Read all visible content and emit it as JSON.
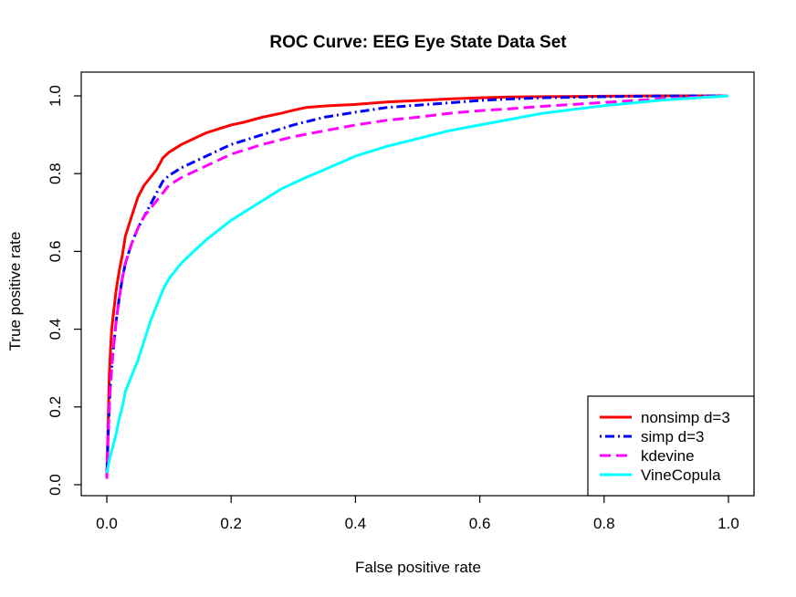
{
  "chart_data": {
    "type": "line",
    "title": "ROC Curve: EEG Eye State Data Set",
    "xlabel": "False positive rate",
    "ylabel": "True positive rate",
    "xlim": [
      0.0,
      1.0
    ],
    "ylim": [
      0.0,
      1.0
    ],
    "x_ticks": [
      "0.0",
      "0.2",
      "0.4",
      "0.6",
      "0.8",
      "1.0"
    ],
    "y_ticks": [
      "0.0",
      "0.2",
      "0.4",
      "0.6",
      "0.8",
      "1.0"
    ],
    "legend_position": "bottom-right",
    "series": [
      {
        "name": "nonsimp d=3",
        "color": "#ff0000",
        "dash": "solid",
        "x": [
          0.0,
          0.002,
          0.004,
          0.006,
          0.008,
          0.01,
          0.015,
          0.02,
          0.025,
          0.03,
          0.04,
          0.05,
          0.06,
          0.07,
          0.08,
          0.09,
          0.1,
          0.12,
          0.14,
          0.16,
          0.18,
          0.2,
          0.22,
          0.25,
          0.28,
          0.3,
          0.32,
          0.35,
          0.4,
          0.45,
          0.5,
          0.55,
          0.6,
          0.65,
          0.7,
          0.8,
          0.9,
          1.0
        ],
        "y": [
          0.02,
          0.15,
          0.28,
          0.35,
          0.4,
          0.43,
          0.5,
          0.55,
          0.59,
          0.64,
          0.69,
          0.74,
          0.77,
          0.79,
          0.81,
          0.84,
          0.855,
          0.875,
          0.89,
          0.905,
          0.915,
          0.925,
          0.932,
          0.945,
          0.955,
          0.963,
          0.97,
          0.974,
          0.978,
          0.984,
          0.988,
          0.992,
          0.995,
          0.997,
          0.998,
          0.999,
          1.0,
          1.0
        ]
      },
      {
        "name": "simp d=3",
        "color": "#0000ff",
        "dash": "dotdash",
        "x": [
          0.0,
          0.002,
          0.004,
          0.006,
          0.008,
          0.01,
          0.015,
          0.02,
          0.025,
          0.03,
          0.04,
          0.05,
          0.06,
          0.07,
          0.08,
          0.09,
          0.1,
          0.12,
          0.14,
          0.16,
          0.18,
          0.2,
          0.25,
          0.3,
          0.35,
          0.4,
          0.45,
          0.5,
          0.55,
          0.6,
          0.65,
          0.7,
          0.8,
          0.9,
          1.0
        ],
        "y": [
          0.02,
          0.12,
          0.2,
          0.26,
          0.3,
          0.34,
          0.42,
          0.48,
          0.53,
          0.57,
          0.62,
          0.66,
          0.69,
          0.72,
          0.75,
          0.78,
          0.795,
          0.815,
          0.83,
          0.845,
          0.86,
          0.875,
          0.9,
          0.925,
          0.945,
          0.958,
          0.97,
          0.976,
          0.982,
          0.988,
          0.992,
          0.995,
          0.998,
          1.0,
          1.0
        ]
      },
      {
        "name": "kdevine",
        "color": "#ff00ff",
        "dash": "dashed",
        "x": [
          0.0,
          0.002,
          0.004,
          0.006,
          0.008,
          0.01,
          0.015,
          0.02,
          0.025,
          0.03,
          0.04,
          0.05,
          0.06,
          0.07,
          0.08,
          0.09,
          0.1,
          0.12,
          0.14,
          0.16,
          0.18,
          0.2,
          0.25,
          0.3,
          0.35,
          0.4,
          0.45,
          0.5,
          0.55,
          0.6,
          0.65,
          0.7,
          0.75,
          0.8,
          0.85,
          0.9,
          0.95,
          1.0
        ],
        "y": [
          0.015,
          0.12,
          0.2,
          0.26,
          0.3,
          0.34,
          0.42,
          0.48,
          0.53,
          0.57,
          0.62,
          0.66,
          0.69,
          0.71,
          0.73,
          0.75,
          0.77,
          0.79,
          0.805,
          0.82,
          0.835,
          0.85,
          0.875,
          0.895,
          0.91,
          0.925,
          0.937,
          0.945,
          0.955,
          0.962,
          0.967,
          0.973,
          0.978,
          0.983,
          0.988,
          0.993,
          0.997,
          1.0
        ]
      },
      {
        "name": "VineCopula",
        "color": "#00ffff",
        "dash": "solid",
        "x": [
          0.0,
          0.005,
          0.01,
          0.015,
          0.02,
          0.025,
          0.03,
          0.04,
          0.05,
          0.06,
          0.07,
          0.08,
          0.09,
          0.1,
          0.12,
          0.14,
          0.16,
          0.18,
          0.2,
          0.22,
          0.25,
          0.28,
          0.3,
          0.32,
          0.35,
          0.4,
          0.45,
          0.5,
          0.55,
          0.6,
          0.65,
          0.7,
          0.8,
          0.9,
          1.0
        ],
        "y": [
          0.03,
          0.07,
          0.1,
          0.13,
          0.17,
          0.2,
          0.24,
          0.28,
          0.32,
          0.37,
          0.42,
          0.46,
          0.5,
          0.53,
          0.57,
          0.6,
          0.63,
          0.655,
          0.68,
          0.7,
          0.73,
          0.76,
          0.775,
          0.79,
          0.81,
          0.845,
          0.87,
          0.89,
          0.91,
          0.925,
          0.94,
          0.955,
          0.975,
          0.99,
          1.0
        ]
      }
    ]
  }
}
